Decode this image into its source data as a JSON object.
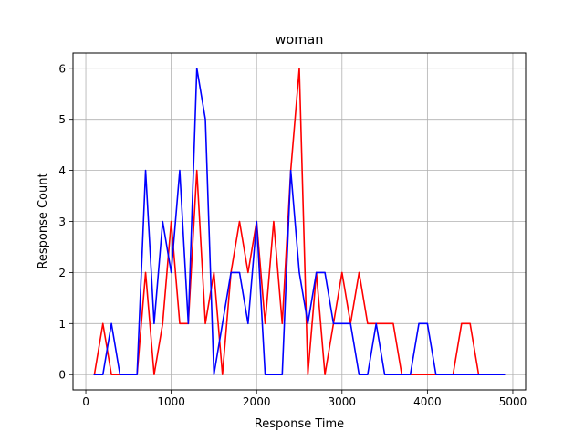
{
  "chart_data": {
    "type": "line",
    "title": "woman",
    "xlabel": "Response Time",
    "ylabel": "Response Count",
    "xlim": [
      -150,
      5150
    ],
    "ylim": [
      -0.3,
      6.3
    ],
    "xticks": [
      0,
      1000,
      2000,
      3000,
      4000,
      5000
    ],
    "yticks": [
      0,
      1,
      2,
      3,
      4,
      5,
      6
    ],
    "grid": true,
    "legend": null,
    "series": [
      {
        "color": "#ff0000",
        "x": [
          100,
          200,
          300,
          400,
          500,
          600,
          700,
          800,
          900,
          1000,
          1100,
          1200,
          1300,
          1400,
          1500,
          1600,
          1700,
          1800,
          1900,
          2000,
          2100,
          2200,
          2300,
          2400,
          2500,
          2600,
          2700,
          2800,
          2900,
          3000,
          3100,
          3200,
          3300,
          3400,
          3500,
          3600,
          3700,
          3800,
          3900,
          4000,
          4100,
          4200,
          4300,
          4400,
          4500,
          4600,
          4700,
          4800,
          4900
        ],
        "values": [
          0,
          1,
          0,
          0,
          0,
          0,
          2,
          0,
          1,
          3,
          1,
          1,
          4,
          1,
          2,
          0,
          2,
          3,
          2,
          3,
          1,
          3,
          1,
          4,
          6,
          0,
          2,
          0,
          1,
          2,
          1,
          2,
          1,
          1,
          1,
          1,
          0,
          0,
          0,
          0,
          0,
          0,
          0,
          1,
          1,
          0,
          0,
          0,
          0
        ]
      },
      {
        "color": "#0000ff",
        "x": [
          100,
          200,
          300,
          400,
          500,
          600,
          700,
          800,
          900,
          1000,
          1100,
          1200,
          1300,
          1400,
          1500,
          1600,
          1700,
          1800,
          1900,
          2000,
          2100,
          2200,
          2300,
          2400,
          2500,
          2600,
          2700,
          2800,
          2900,
          3000,
          3100,
          3200,
          3300,
          3400,
          3500,
          3600,
          3700,
          3800,
          3900,
          4000,
          4100,
          4200,
          4300,
          4400,
          4500,
          4600,
          4700,
          4800,
          4900
        ],
        "values": [
          0,
          0,
          1,
          0,
          0,
          0,
          4,
          1,
          3,
          2,
          4,
          1,
          6,
          5,
          0,
          1,
          2,
          2,
          1,
          3,
          0,
          0,
          0,
          4,
          2,
          1,
          2,
          2,
          1,
          1,
          1,
          0,
          0,
          1,
          0,
          0,
          0,
          0,
          1,
          1,
          0,
          0,
          0,
          0,
          0,
          0,
          0,
          0,
          0
        ]
      }
    ]
  }
}
